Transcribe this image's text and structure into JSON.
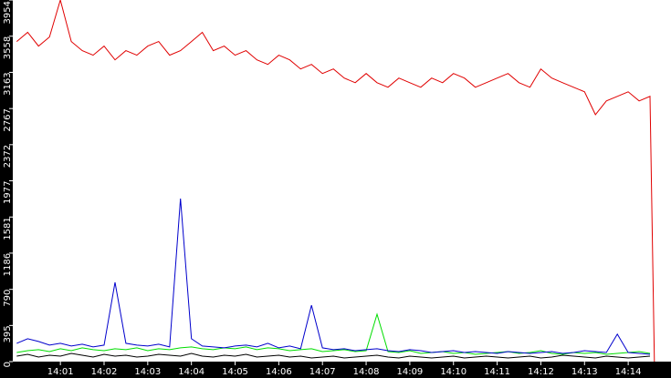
{
  "chart_data": {
    "type": "line",
    "x": [
      0,
      0.25,
      0.5,
      0.75,
      1,
      1.25,
      1.5,
      1.75,
      2,
      2.25,
      2.5,
      2.75,
      3,
      3.25,
      3.5,
      3.75,
      4,
      4.25,
      4.5,
      4.75,
      5,
      5.25,
      5.5,
      5.75,
      6,
      6.25,
      6.5,
      6.75,
      7,
      7.25,
      7.5,
      7.75,
      8,
      8.25,
      8.5,
      8.75,
      9,
      9.25,
      9.5,
      9.75,
      10,
      10.25,
      10.5,
      10.75,
      11,
      11.25,
      11.5,
      11.75,
      12,
      12.25,
      12.5,
      12.75,
      13,
      13.25,
      13.5,
      13.75,
      14,
      14.25,
      14.5,
      14.6
    ],
    "xlim": [
      -0.09,
      14.98
    ],
    "xticks": [
      {
        "value": 1,
        "label": "14:01"
      },
      {
        "value": 2,
        "label": "14:02"
      },
      {
        "value": 3,
        "label": "14:03"
      },
      {
        "value": 4,
        "label": "14:04"
      },
      {
        "value": 5,
        "label": "14:05"
      },
      {
        "value": 6,
        "label": "14:06"
      },
      {
        "value": 7,
        "label": "14:07"
      },
      {
        "value": 8,
        "label": "14:08"
      },
      {
        "value": 9,
        "label": "14:09"
      },
      {
        "value": 10,
        "label": "14:10"
      },
      {
        "value": 11,
        "label": "14:11"
      },
      {
        "value": 12,
        "label": "14:12"
      },
      {
        "value": 13,
        "label": "14:13"
      },
      {
        "value": 14,
        "label": "14:14"
      }
    ],
    "ylim": [
      0,
      3954
    ],
    "yticks": [
      0,
      395,
      790,
      1186,
      1581,
      1977,
      2372,
      2767,
      3163,
      3558,
      3954
    ],
    "series": [
      {
        "color": "#e00000",
        "values": [
          3500,
          3600,
          3450,
          3550,
          3954,
          3500,
          3400,
          3350,
          3450,
          3300,
          3400,
          3350,
          3450,
          3500,
          3350,
          3400,
          3500,
          3600,
          3400,
          3450,
          3350,
          3400,
          3300,
          3250,
          3350,
          3300,
          3200,
          3250,
          3150,
          3200,
          3100,
          3050,
          3150,
          3050,
          3000,
          3100,
          3050,
          3000,
          3100,
          3050,
          3150,
          3100,
          3000,
          3050,
          3100,
          3150,
          3050,
          3000,
          3200,
          3100,
          3050,
          3000,
          2950,
          2700,
          2850,
          2900,
          2950,
          2850,
          2900,
          0
        ]
      },
      {
        "color": "#00dd00",
        "values": [
          100,
          120,
          130,
          110,
          140,
          120,
          150,
          130,
          120,
          140,
          130,
          150,
          120,
          140,
          130,
          150,
          160,
          140,
          130,
          150,
          140,
          160,
          130,
          150,
          140,
          120,
          130,
          140,
          110,
          120,
          130,
          110,
          120,
          518,
          110,
          100,
          120,
          90,
          100,
          110,
          90,
          100,
          80,
          90,
          100,
          110,
          90,
          100,
          120,
          90,
          80,
          100,
          90,
          100,
          80,
          90,
          100,
          110,
          90,
          null
        ]
      },
      {
        "color": "#0000cc",
        "values": [
          200,
          250,
          220,
          180,
          200,
          170,
          190,
          160,
          180,
          866,
          200,
          180,
          170,
          190,
          160,
          1783,
          250,
          170,
          160,
          150,
          170,
          180,
          160,
          200,
          150,
          170,
          140,
          617,
          150,
          130,
          140,
          120,
          130,
          140,
          120,
          110,
          130,
          120,
          100,
          110,
          120,
          100,
          110,
          100,
          90,
          110,
          100,
          90,
          100,
          110,
          90,
          100,
          120,
          110,
          100,
          300,
          100,
          90,
          80,
          null
        ]
      },
      {
        "color": "#000000",
        "values": [
          60,
          80,
          50,
          70,
          60,
          90,
          70,
          50,
          80,
          60,
          70,
          50,
          60,
          80,
          70,
          60,
          90,
          60,
          50,
          70,
          60,
          80,
          50,
          60,
          70,
          50,
          60,
          40,
          50,
          60,
          40,
          50,
          60,
          70,
          50,
          40,
          60,
          50,
          40,
          50,
          60,
          40,
          50,
          60,
          50,
          40,
          50,
          60,
          40,
          50,
          70,
          60,
          50,
          40,
          60,
          50,
          40,
          50,
          60,
          null
        ]
      }
    ]
  }
}
